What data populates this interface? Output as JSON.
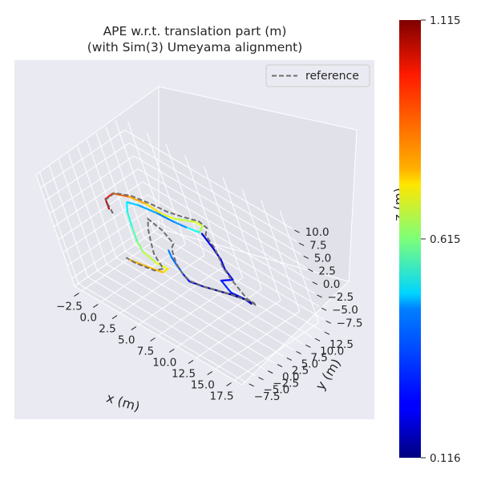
{
  "chart_data": {
    "type": "line3d",
    "title_line1": "APE w.r.t. translation part (m)",
    "title_line2": "(with Sim(3) Umeyama alignment)",
    "xlabel": "x (m)",
    "ylabel": "y (m)",
    "zlabel": "z (m)",
    "x_ticks": [
      "−2.5",
      "0.0",
      "2.5",
      "5.0",
      "7.5",
      "10.0",
      "12.5",
      "15.0",
      "17.5"
    ],
    "y_ticks": [
      "−7.5",
      "−5.0",
      "−2.5",
      "0.0",
      "2.5",
      "5.0",
      "7.5",
      "10.0",
      "12.5"
    ],
    "z_ticks": [
      "−7.5",
      "−5.0",
      "−2.5",
      "0.0",
      "2.5",
      "5.0",
      "7.5",
      "10.0"
    ],
    "xlim": [
      -3.5,
      18.5
    ],
    "ylim": [
      -8.5,
      13.8
    ],
    "zlim": [
      -9,
      12.5
    ],
    "legend": {
      "label": "reference",
      "placement": "top-right"
    },
    "colorbar": {
      "min": 0.116,
      "max": 1.115,
      "ticks": [
        "1.115",
        "0.615",
        "0.116"
      ],
      "colormap": "jet"
    },
    "reference_color": "#6e6e6e",
    "pane_color": "#eaeaf2",
    "trajectory": [
      {
        "x": 0.2,
        "y": -0.2,
        "z": 5.0,
        "e": 1.07
      },
      {
        "x": -0.2,
        "y": 0.3,
        "z": 6.3,
        "e": 1.0
      },
      {
        "x": 0.6,
        "y": 1.2,
        "z": 7.6,
        "e": 0.93
      },
      {
        "x": 2.5,
        "y": 2.0,
        "z": 8.2,
        "e": 0.85
      },
      {
        "x": 4.5,
        "y": 2.6,
        "z": 8.2,
        "e": 0.8
      },
      {
        "x": 6.2,
        "y": 2.9,
        "z": 7.6,
        "e": 0.74
      },
      {
        "x": 7.7,
        "y": 3.3,
        "z": 7.8,
        "e": 0.7
      },
      {
        "x": 9.0,
        "y": 3.9,
        "z": 8.3,
        "e": 0.66
      },
      {
        "x": 10.0,
        "y": 4.5,
        "z": 8.6,
        "e": 0.7
      },
      {
        "x": 10.6,
        "y": 5.0,
        "z": 8.0,
        "e": 0.72
      },
      {
        "x": 10.2,
        "y": 4.4,
        "z": 6.8,
        "e": 0.6
      },
      {
        "x": 9.1,
        "y": 3.4,
        "z": 7.3,
        "e": 0.42
      },
      {
        "x": 7.9,
        "y": 2.7,
        "z": 7.7,
        "e": 0.36
      },
      {
        "x": 6.2,
        "y": 1.9,
        "z": 8.3,
        "e": 0.38
      },
      {
        "x": 4.2,
        "y": 1.1,
        "z": 8.5,
        "e": 0.43
      },
      {
        "x": 2.9,
        "y": 0.6,
        "z": 8.2,
        "e": 0.46
      },
      {
        "x": 2.5,
        "y": 0.5,
        "z": 6.0,
        "e": 0.5
      },
      {
        "x": 2.5,
        "y": 0.4,
        "z": 3.0,
        "e": 0.55
      },
      {
        "x": 2.6,
        "y": 0.3,
        "z": 0.4,
        "e": 0.6
      },
      {
        "x": 3.0,
        "y": 0.3,
        "z": -1.2,
        "e": 0.65
      },
      {
        "x": 4.3,
        "y": 0.6,
        "z": -2.3,
        "e": 0.7
      },
      {
        "x": 5.6,
        "y": 0.9,
        "z": -2.5,
        "e": 0.74
      },
      {
        "x": 5.1,
        "y": 0.3,
        "z": -3.3,
        "e": 0.8
      },
      {
        "x": 3.2,
        "y": -0.3,
        "z": -3.5,
        "e": 0.8
      },
      {
        "x": 1.2,
        "y": -0.8,
        "z": -3.7,
        "e": 0.82
      }
    ],
    "trajectory_right": [
      {
        "x": 10.4,
        "y": 4.6,
        "z": 6.6,
        "e": 0.24
      },
      {
        "x": 10.7,
        "y": 5.6,
        "z": 3.4,
        "e": 0.2
      },
      {
        "x": 10.3,
        "y": 6.9,
        "z": 0.3,
        "e": 0.2
      },
      {
        "x": 9.6,
        "y": 7.9,
        "z": -2.6,
        "e": 0.24
      },
      {
        "x": 9.8,
        "y": 8.6,
        "z": -4.8,
        "e": 0.2
      },
      {
        "x": 8.6,
        "y": 7.6,
        "z": -5.5,
        "e": 0.3
      },
      {
        "x": 9.7,
        "y": 7.4,
        "z": -6.8,
        "e": 0.27
      },
      {
        "x": 10.5,
        "y": 8.8,
        "z": -8.0,
        "e": 0.22
      },
      {
        "x": 10.4,
        "y": 10.0,
        "z": -9.6,
        "e": 0.2
      },
      {
        "x": 9.2,
        "y": 11.4,
        "z": -10.8,
        "e": 0.14
      },
      {
        "x": 7.4,
        "y": 10.2,
        "z": -10.5,
        "e": 0.12
      },
      {
        "x": 5.2,
        "y": 7.8,
        "z": -9.7,
        "e": 0.16
      },
      {
        "x": 4.4,
        "y": 6.2,
        "z": -8.6,
        "e": 0.22
      },
      {
        "x": 4.6,
        "y": 5.1,
        "z": -6.4,
        "e": 0.3
      },
      {
        "x": 4.9,
        "y": 4.0,
        "z": -3.8,
        "e": 0.36
      },
      {
        "x": 5.3,
        "y": 3.0,
        "z": -1.6,
        "e": 0.34
      },
      {
        "x": 5.8,
        "y": 2.2,
        "z": 0.6,
        "e": 0.38
      }
    ],
    "reference": [
      {
        "x": 0.5,
        "y": -0.1,
        "z": 4.3
      },
      {
        "x": -0.3,
        "y": 0.4,
        "z": 6.0
      },
      {
        "x": 0.8,
        "y": 1.3,
        "z": 7.8
      },
      {
        "x": 2.8,
        "y": 2.1,
        "z": 8.6
      },
      {
        "x": 5.0,
        "y": 2.7,
        "z": 8.7
      },
      {
        "x": 7.0,
        "y": 3.3,
        "z": 8.5
      },
      {
        "x": 9.0,
        "y": 4.0,
        "z": 8.8
      },
      {
        "x": 10.4,
        "y": 4.8,
        "z": 8.9
      },
      {
        "x": 11.0,
        "y": 5.3,
        "z": 7.9
      },
      {
        "x": 10.6,
        "y": 5.0,
        "z": 6.3
      },
      {
        "x": 10.7,
        "y": 5.9,
        "z": 3.4
      },
      {
        "x": 10.0,
        "y": 7.0,
        "z": 0.3
      },
      {
        "x": 9.3,
        "y": 8.0,
        "z": -2.4
      },
      {
        "x": 9.3,
        "y": 8.8,
        "z": -5.0
      },
      {
        "x": 10.5,
        "y": 9.3,
        "z": -8.2
      },
      {
        "x": 10.9,
        "y": 10.3,
        "z": -9.7
      },
      {
        "x": 9.6,
        "y": 11.6,
        "z": -10.9
      },
      {
        "x": 7.4,
        "y": 10.6,
        "z": -10.8
      },
      {
        "x": 5.2,
        "y": 8.2,
        "z": -10.0
      },
      {
        "x": 4.2,
        "y": 6.5,
        "z": -8.8
      },
      {
        "x": 4.3,
        "y": 5.3,
        "z": -6.4
      },
      {
        "x": 4.7,
        "y": 4.3,
        "z": -3.8
      },
      {
        "x": 5.4,
        "y": 3.4,
        "z": -1.2
      },
      {
        "x": 6.3,
        "y": 2.4,
        "z": 1.4
      },
      {
        "x": 7.3,
        "y": 1.8,
        "z": 3.4
      },
      {
        "x": 6.6,
        "y": 1.3,
        "z": 5.6
      },
      {
        "x": 5.2,
        "y": 0.9,
        "z": 6.8
      },
      {
        "x": 4.8,
        "y": 0.7,
        "z": 4.6
      },
      {
        "x": 4.6,
        "y": 0.6,
        "z": 2.0
      },
      {
        "x": 4.5,
        "y": 0.5,
        "z": -0.4
      },
      {
        "x": 5.2,
        "y": 0.5,
        "z": -2.6
      },
      {
        "x": 4.1,
        "y": -0.1,
        "z": -3.6
      },
      {
        "x": 1.8,
        "y": -0.6,
        "z": -3.9
      },
      {
        "x": 0.7,
        "y": -0.8,
        "z": -3.7
      }
    ]
  }
}
